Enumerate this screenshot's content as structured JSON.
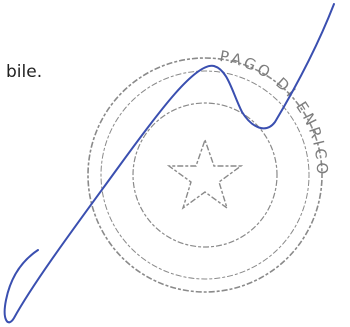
{
  "body": {
    "text": "bile."
  },
  "stamp": {
    "ring_text": "PAGO DI ENRICO"
  }
}
